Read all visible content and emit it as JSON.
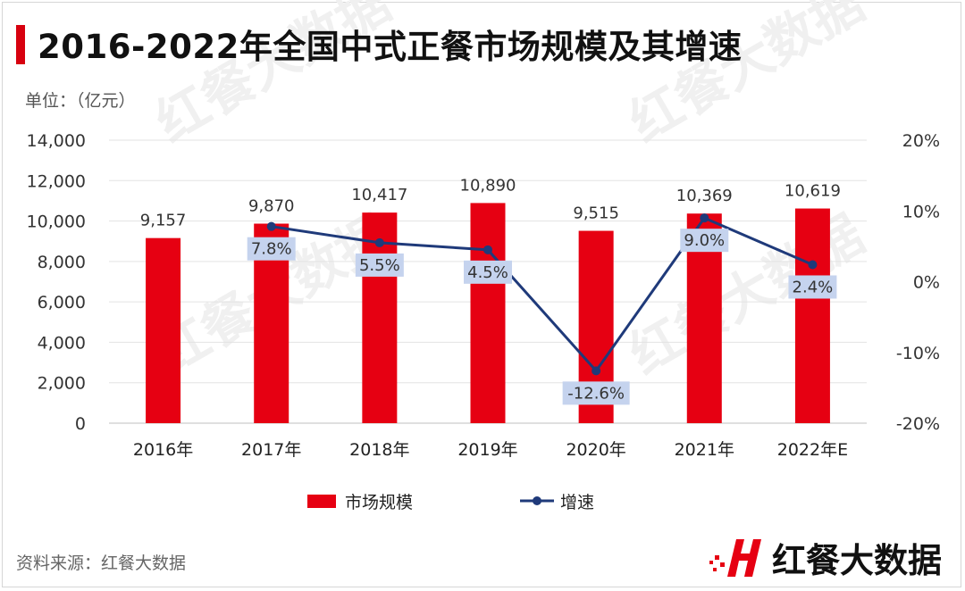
{
  "title": "2016-2022年全国中式正餐市场规模及其增速",
  "unit_label": "单位：（亿元）",
  "source": "资料来源：红餐大数据",
  "brand": {
    "name": "红餐大数据"
  },
  "watermark": "红餐大数据",
  "colors": {
    "bar": "#e60012",
    "line": "#1f3a7a",
    "label_bg": "#c5d3ee",
    "title_accent": "#d7000f",
    "brand_red": "#e60012"
  },
  "chart_data": {
    "type": "bar+line",
    "categories": [
      "2016年",
      "2017年",
      "2018年",
      "2019年",
      "2020年",
      "2021年",
      "2022年E"
    ],
    "series": [
      {
        "name": "市场规模",
        "type": "bar",
        "axis": "left",
        "values": [
          9157,
          9870,
          10417,
          10890,
          9515,
          10369,
          10619
        ],
        "labels": [
          "9,157",
          "9,870",
          "10,417",
          "10,890",
          "9,515",
          "10,369",
          "10,619"
        ]
      },
      {
        "name": "增速",
        "type": "line",
        "axis": "right",
        "values": [
          null,
          7.8,
          5.5,
          4.5,
          -12.6,
          9.0,
          2.4
        ],
        "labels": [
          "",
          "7.8%",
          "5.5%",
          "4.5%",
          "-12.6%",
          "9.0%",
          "2.4%"
        ]
      }
    ],
    "y_left": {
      "min": 0,
      "max": 14000,
      "ticks": [
        0,
        2000,
        4000,
        6000,
        8000,
        10000,
        12000,
        14000
      ],
      "tick_labels": [
        "0",
        "2,000",
        "4,000",
        "6,000",
        "8,000",
        "10,000",
        "12,000",
        "14,000"
      ]
    },
    "y_right": {
      "min": -20,
      "max": 20,
      "ticks": [
        -20,
        -10,
        0,
        10,
        20
      ],
      "tick_labels": [
        "-20%",
        "-10%",
        "0%",
        "10%",
        "20%"
      ]
    },
    "grid": true,
    "legend_position": "bottom"
  }
}
